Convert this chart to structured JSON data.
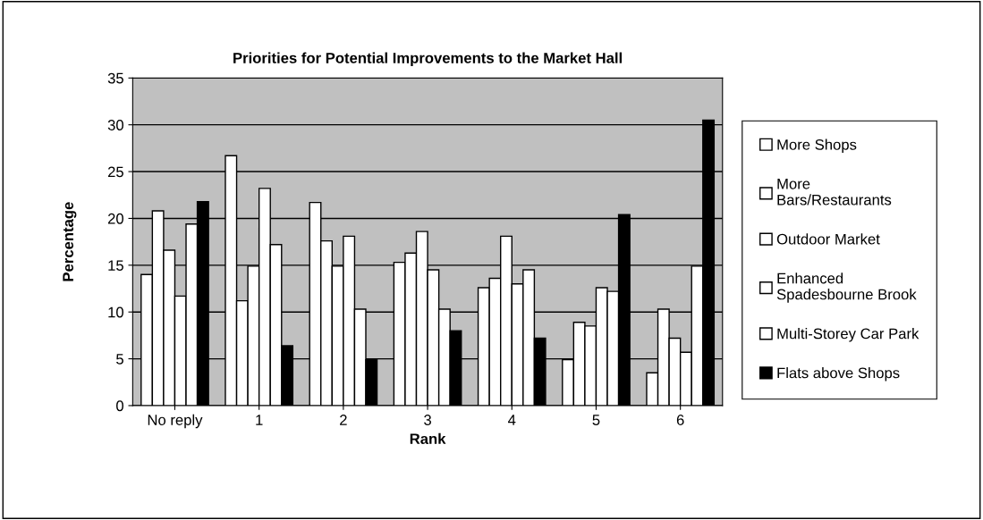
{
  "chart_data": {
    "type": "bar",
    "title": "Priorities for Potential Improvements to the Market Hall",
    "xlabel": "Rank",
    "ylabel": "Percentage",
    "categories": [
      "No reply",
      "1",
      "2",
      "3",
      "4",
      "5",
      "6"
    ],
    "series": [
      {
        "name": "More Shops",
        "color": "#ffffff",
        "values": [
          14.0,
          26.7,
          21.7,
          15.3,
          12.6,
          4.9,
          3.5
        ]
      },
      {
        "name": "More\nBars/Restaurants",
        "color": "#ffffff",
        "values": [
          20.8,
          11.2,
          17.6,
          16.3,
          13.6,
          8.9,
          10.3
        ]
      },
      {
        "name": "Outdoor Market",
        "color": "#ffffff",
        "values": [
          16.6,
          14.9,
          14.9,
          18.6,
          18.1,
          8.5,
          7.2
        ]
      },
      {
        "name": "Enhanced\nSpadesbourne Brook",
        "color": "#ffffff",
        "values": [
          11.7,
          23.2,
          18.1,
          14.5,
          13.0,
          12.6,
          5.7
        ]
      },
      {
        "name": "Multi-Storey Car Park",
        "color": "#ffffff",
        "values": [
          19.4,
          17.2,
          10.3,
          10.3,
          14.5,
          12.2,
          14.9
        ]
      },
      {
        "name": "Flats above Shops",
        "color": "#000000",
        "values": [
          21.8,
          6.4,
          4.9,
          8.0,
          7.2,
          20.4,
          30.5
        ]
      }
    ],
    "ylim": [
      0,
      35
    ],
    "yticks": [
      0,
      5,
      10,
      15,
      20,
      25,
      30,
      35
    ],
    "grid": "y",
    "legend": "right"
  }
}
